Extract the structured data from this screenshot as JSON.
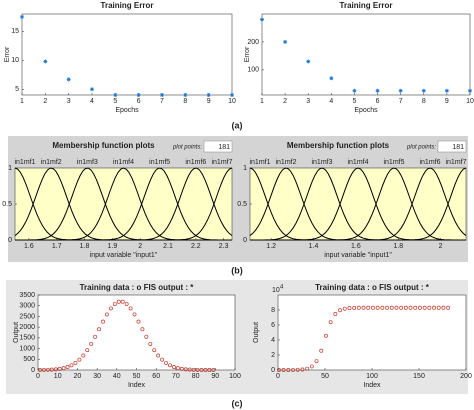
{
  "panel_labels": [
    "(a)",
    "(b)",
    "(c)"
  ],
  "chart_data": [
    {
      "type": "scatter",
      "title": "Training Error",
      "xlabel": "Epochs",
      "ylabel": "Error",
      "x": [
        1,
        2,
        3,
        4,
        5,
        6,
        7,
        8,
        9,
        10
      ],
      "values": [
        17.5,
        9.8,
        6.7,
        5.0,
        4.0,
        4.0,
        4.0,
        4.0,
        4.0,
        4.0
      ],
      "xlim": [
        1,
        10
      ],
      "xticks": [
        1,
        2,
        3,
        4,
        5,
        6,
        7,
        8,
        9,
        10
      ],
      "ylim": [
        4,
        18
      ],
      "yticks": [
        5,
        10,
        15
      ],
      "color": "#1f77d4",
      "marker": "star"
    },
    {
      "type": "scatter",
      "title": "Training Error",
      "xlabel": "Epochs",
      "ylabel": "Error",
      "x": [
        1,
        2,
        3,
        4,
        5,
        6,
        7,
        8,
        9,
        10
      ],
      "values": [
        280,
        200,
        130,
        70,
        25,
        25,
        25,
        25,
        25,
        25
      ],
      "xlim": [
        1,
        10
      ],
      "xticks": [
        1,
        2,
        3,
        4,
        5,
        6,
        7,
        8,
        9,
        10
      ],
      "ylim": [
        10,
        300
      ],
      "yticks": [
        100,
        200
      ],
      "color": "#1f77d4",
      "marker": "star"
    },
    {
      "type": "membership",
      "title": "Membership function plots",
      "plot_points_label": "plot points:",
      "plot_points": 181,
      "xlabel": "input variable \"input1\"",
      "xlim": [
        1.55,
        2.33
      ],
      "xticks": [
        1.6,
        1.7,
        1.8,
        1.9,
        2,
        2.1,
        2.2,
        2.3
      ],
      "ylim": [
        0,
        1
      ],
      "yticks": [
        0,
        0.5,
        1
      ],
      "color": "#000000",
      "background": "#ffffc8",
      "mfs": [
        {
          "name": "in1mf1",
          "center": 1.55,
          "sigma": 0.055
        },
        {
          "name": "in1mf2",
          "center": 1.68,
          "sigma": 0.055
        },
        {
          "name": "in1mf3",
          "center": 1.81,
          "sigma": 0.055
        },
        {
          "name": "in1mf4",
          "center": 1.94,
          "sigma": 0.055
        },
        {
          "name": "in1mf5",
          "center": 2.07,
          "sigma": 0.055
        },
        {
          "name": "in1mf6",
          "center": 2.2,
          "sigma": 0.055
        },
        {
          "name": "in1mf7",
          "center": 2.33,
          "sigma": 0.055
        }
      ]
    },
    {
      "type": "membership",
      "title": "Membership function plots",
      "plot_points_label": "plot points:",
      "plot_points": 181,
      "xlabel": "input variable \"input1\"",
      "xlim": [
        1.1,
        2.12
      ],
      "xticks": [
        1.2,
        1.4,
        1.6,
        1.8,
        2
      ],
      "ylim": [
        0,
        1
      ],
      "yticks": [
        0,
        0.5,
        1
      ],
      "color": "#000000",
      "background": "#ffffc8",
      "mfs": [
        {
          "name": "in1mf1",
          "center": 1.1,
          "sigma": 0.072
        },
        {
          "name": "in1mf2",
          "center": 1.27,
          "sigma": 0.072
        },
        {
          "name": "in1mf3",
          "center": 1.44,
          "sigma": 0.072
        },
        {
          "name": "in1mf4",
          "center": 1.61,
          "sigma": 0.072
        },
        {
          "name": "in1mf5",
          "center": 1.78,
          "sigma": 0.072
        },
        {
          "name": "in1mf6",
          "center": 1.95,
          "sigma": 0.072
        },
        {
          "name": "in1mf7",
          "center": 2.12,
          "sigma": 0.072
        }
      ]
    },
    {
      "type": "scatter",
      "title": "Training data : o   FIS output : *",
      "xlabel": "Index",
      "ylabel": "Output",
      "x": [
        1,
        3,
        5,
        7,
        9,
        11,
        13,
        15,
        17,
        19,
        21,
        23,
        25,
        27,
        29,
        31,
        33,
        35,
        37,
        39,
        41,
        43,
        45,
        47,
        49,
        51,
        53,
        55,
        57,
        59,
        61,
        63,
        65,
        67,
        69,
        71,
        73,
        75,
        77,
        79,
        81,
        83,
        85,
        87,
        89
      ],
      "values": [
        2,
        5,
        9,
        17,
        30,
        52,
        87,
        140,
        219,
        330,
        483,
        679,
        925,
        1218,
        1550,
        1904,
        2260,
        2593,
        2874,
        3078,
        3186,
        3186,
        3078,
        2874,
        2593,
        2260,
        1904,
        1550,
        1218,
        925,
        679,
        483,
        330,
        219,
        140,
        87,
        52,
        30,
        17,
        9,
        5,
        2,
        1,
        1,
        0
      ],
      "xlim": [
        0,
        100
      ],
      "xticks": [
        0,
        10,
        20,
        30,
        40,
        50,
        60,
        70,
        80,
        90,
        100
      ],
      "ylim": [
        0,
        3500
      ],
      "yticks": [
        0,
        500,
        1000,
        1500,
        2000,
        2500,
        3000,
        3500
      ],
      "color": "#c0392b",
      "marker": "circle"
    },
    {
      "type": "scatter",
      "title": "Training data : o   FIS output : *",
      "xlabel": "Index",
      "ylabel": "Output",
      "y_exponent": {
        "base": "10",
        "power": "4"
      },
      "x": [
        1,
        6,
        11,
        16,
        21,
        26,
        31,
        36,
        41,
        46,
        51,
        56,
        61,
        66,
        71,
        76,
        81,
        86,
        91,
        96,
        101,
        106,
        111,
        116,
        121,
        126,
        131,
        136,
        141,
        146,
        151,
        156,
        161,
        166,
        171,
        176,
        181
      ],
      "values": [
        0,
        0,
        0,
        0.01,
        0.03,
        0.07,
        0.18,
        0.48,
        1.18,
        2.57,
        4.56,
        6.38,
        7.47,
        7.97,
        8.18,
        8.25,
        8.28,
        8.3,
        8.3,
        8.3,
        8.3,
        8.3,
        8.3,
        8.3,
        8.3,
        8.3,
        8.3,
        8.3,
        8.3,
        8.3,
        8.3,
        8.3,
        8.3,
        8.3,
        8.3,
        8.3,
        8.3
      ],
      "xlim": [
        0,
        200
      ],
      "xticks": [
        0,
        50,
        100,
        150,
        200
      ],
      "ylim": [
        0,
        10
      ],
      "yticks": [
        0,
        2,
        4,
        6,
        8
      ],
      "color": "#c0392b",
      "marker": "circle"
    }
  ]
}
